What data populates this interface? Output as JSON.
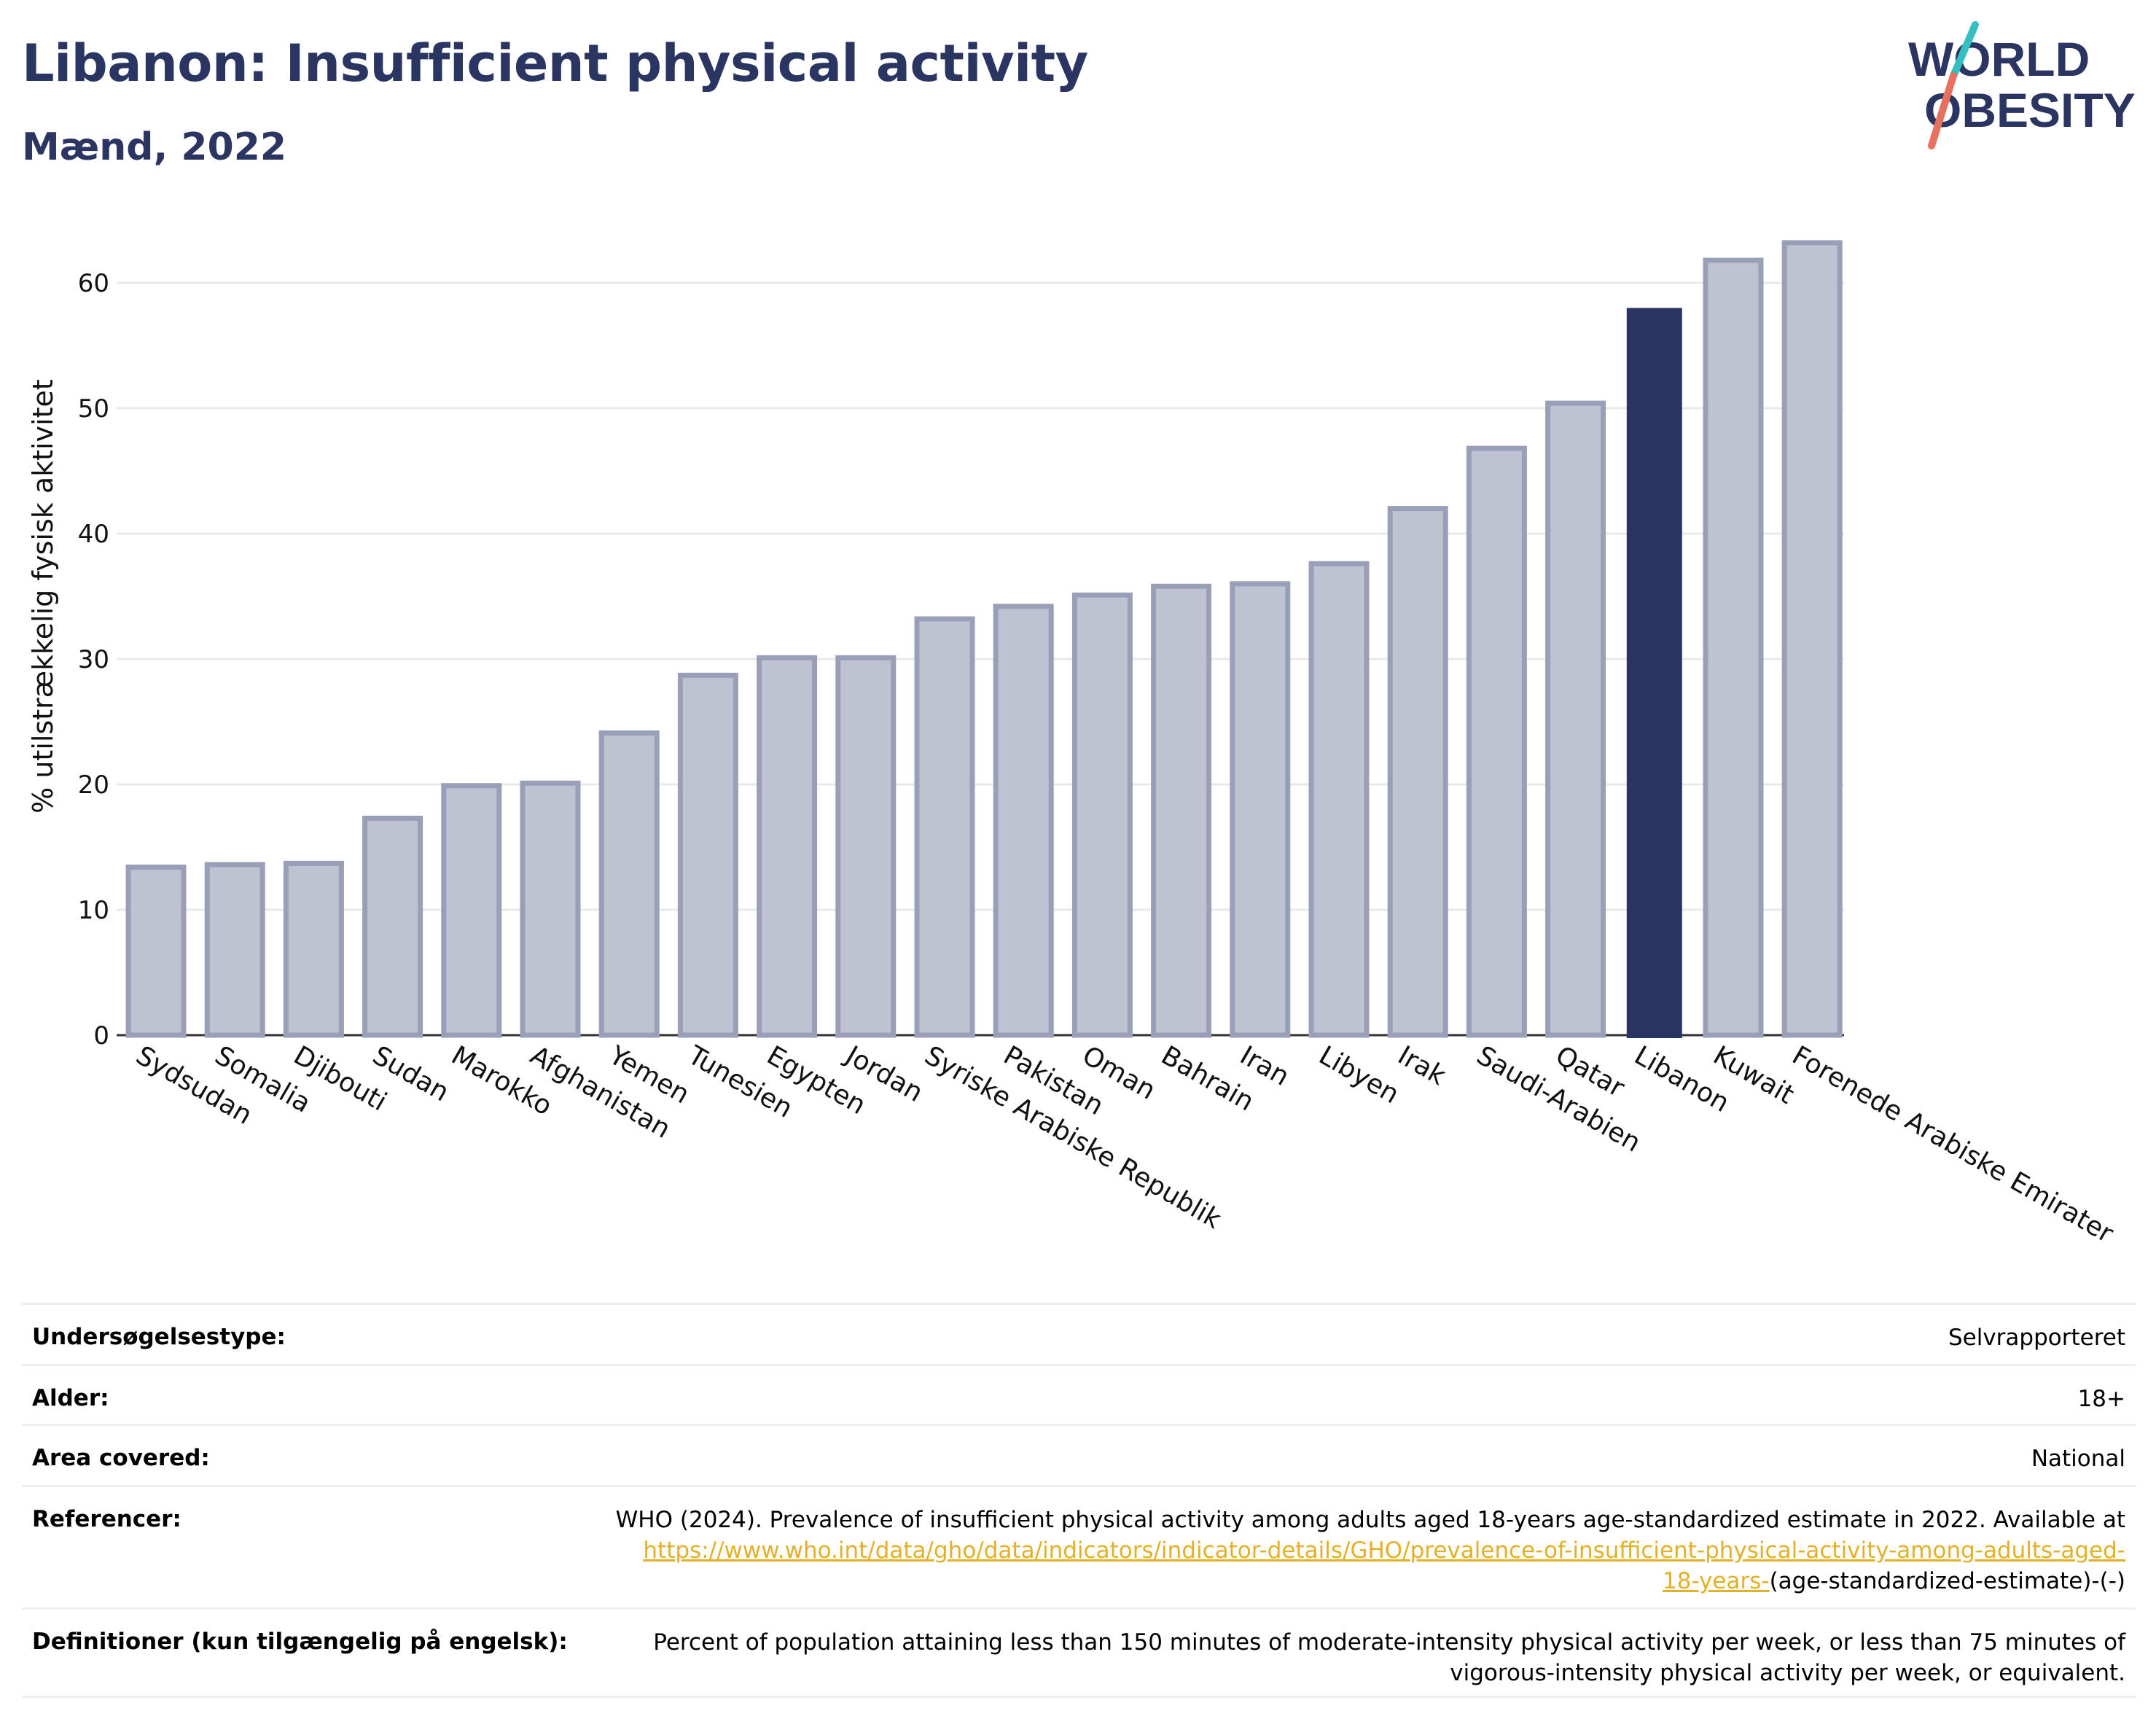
{
  "header": {
    "title": "Libanon: Insufficient physical activity",
    "subtitle": "Mænd, 2022",
    "logo_line1": "WORLD",
    "logo_line2": "OBESITY"
  },
  "colors": {
    "highlight": "#293462",
    "bar_fill": "#bfc2d1",
    "bar_edge": "#9a9fb8",
    "title": "#2b3562",
    "link": "#e3b128",
    "logo_teal": "#34c0c0",
    "logo_red": "#e8705e"
  },
  "chart_data": {
    "type": "bar",
    "title": "Libanon: Insufficient physical activity",
    "subtitle": "Mænd, 2022",
    "xlabel": "",
    "ylabel": "% utilstrækkelig fysisk aktivitet",
    "ylim": [
      0,
      65
    ],
    "yticks": [
      0,
      10,
      20,
      30,
      40,
      50,
      60
    ],
    "grid": true,
    "highlight": "Libanon",
    "categories": [
      "Sydsudan",
      "Somalia",
      "Djibouti",
      "Sudan",
      "Marokko",
      "Afghanistan",
      "Yemen",
      "Tunesien",
      "Egypten",
      "Jordan",
      "Syriske Arabiske Republik",
      "Pakistan",
      "Oman",
      "Bahrain",
      "Iran",
      "Libyen",
      "Irak",
      "Saudi-Arabien",
      "Qatar",
      "Libanon",
      "Kuwait",
      "Forenede Arabiske Emirater"
    ],
    "values": [
      13.4,
      13.6,
      13.7,
      17.3,
      19.9,
      20.1,
      24.1,
      28.7,
      30.1,
      30.1,
      33.2,
      34.2,
      35.1,
      35.8,
      36.0,
      37.6,
      42.0,
      46.8,
      50.4,
      58.0,
      61.8,
      63.2
    ]
  },
  "info": {
    "survey_label": "Undersøgelsestype:",
    "survey_value": "Selvrapporteret",
    "age_label": "Alder:",
    "age_value": "18+",
    "area_label": "Area covered:",
    "area_value": "National",
    "ref_label": "Referencer:",
    "ref_text": "WHO (2024). Prevalence of insufficient physical activity among adults aged 18-years age-standardized estimate in 2022. Available at ",
    "ref_link": "https://www.who.int/data/gho/data/indicators/indicator-details/GHO/prevalence-of-insufficient-physical-activity-among-adults-aged-18-years-",
    "ref_tail": "(age-standardized-estimate)-(-)",
    "def_label": "Definitioner (kun tilgængelig på engelsk):",
    "def_value": "Percent of population attaining less than 150 minutes of moderate-intensity physical activity per week, or less than 75 minutes of vigorous-intensity physical activity per week, or equivalent."
  }
}
